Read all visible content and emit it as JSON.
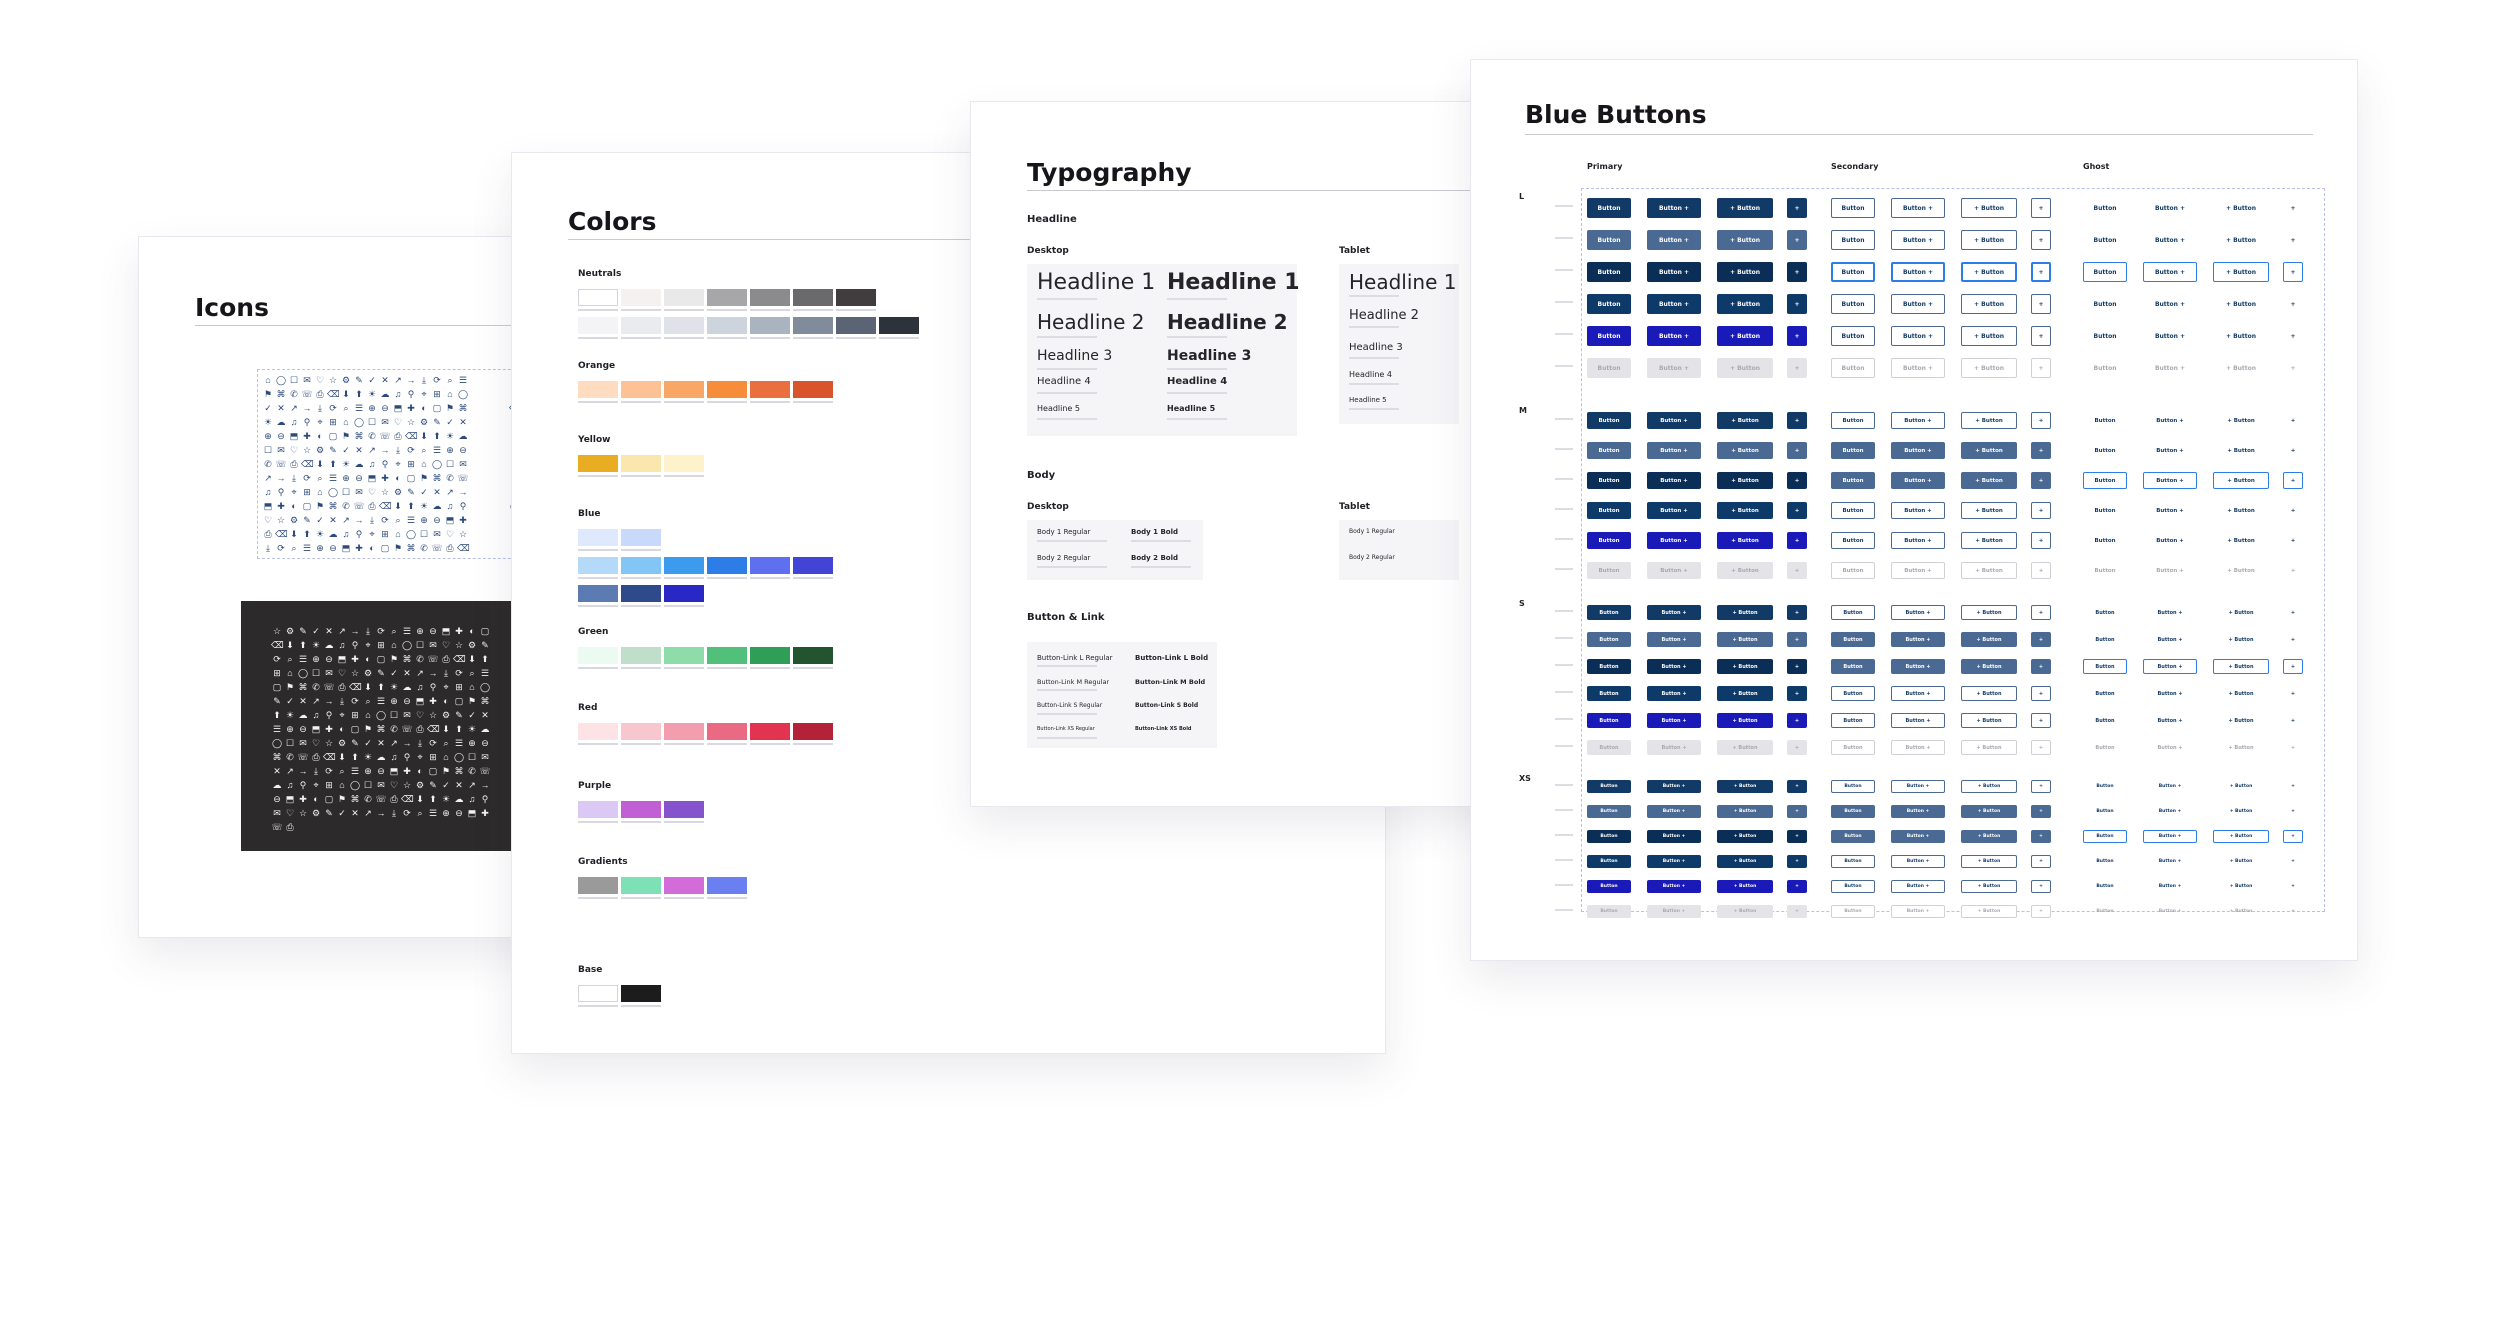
{
  "icons_page": {
    "title": "Icons",
    "light_glyphs": [
      "⌂",
      "◯",
      "☐",
      "✉",
      "♡",
      "☆",
      "⚙",
      "✎",
      "✓",
      "✕",
      "↗",
      "→",
      "⤓",
      "⟳",
      "⌕",
      "☰",
      "⊕",
      "⊖",
      "⬒",
      "✚",
      "◐",
      "▢",
      "⚑",
      "⌘",
      "✆",
      "☏",
      "⎙",
      "⌫",
      "⬇",
      "⬆",
      "☀",
      "☁",
      "♫",
      "⚲",
      "⌖",
      "⊞"
    ],
    "dark_glyphs": [
      "⌂",
      "◯",
      "☐",
      "✉",
      "♡",
      "☆",
      "⚙",
      "✎",
      "✓",
      "✕",
      "↗",
      "→",
      "⤓",
      "⟳",
      "⌕",
      "☰",
      "⊕",
      "⊖",
      "⬒",
      "✚",
      "◐",
      "▢",
      "⚑",
      "⌘",
      "✆",
      "☏",
      "⎙",
      "⌫",
      "⬇",
      "⬆",
      "☀",
      "☁",
      "♫",
      "⚲",
      "⌖",
      "⊞"
    ],
    "colors": {
      "light_glyph": "#2d4a7a",
      "dark_bg": "#2d2a2b",
      "dark_glyph": "#f2f2f2"
    }
  },
  "colors_page": {
    "title": "Colors",
    "groups": [
      {
        "name": "Neutrals",
        "rows": [
          [
            "#ffffff",
            "#f4f1ee",
            "#e9e9ea",
            "#a7a7a9",
            "#8b8b8d",
            "#6a6a6c",
            "#413c3e"
          ],
          [
            "#f4f4f6",
            "#e9ebef",
            "#dfe2e8",
            "#ced4dd",
            "#aab3c0",
            "#808b9b",
            "#5a6474",
            "#2e323a"
          ]
        ]
      },
      {
        "name": "Orange",
        "rows": [
          [
            "#ffdcc0",
            "#fcc295",
            "#f8a766",
            "#f68d3a",
            "#ea6f3f",
            "#d9532b"
          ]
        ]
      },
      {
        "name": "Yellow",
        "rows": [
          [
            "#e8ad22",
            "#fbe6ae",
            "#fdf2cc"
          ]
        ]
      },
      {
        "name": "Blue",
        "rows": [
          [
            "#dfe9fd",
            "#c9d9fc"
          ],
          [
            "#b5daf9",
            "#82c6f5",
            "#3c9bec",
            "#2d7de8",
            "#5e6ff0",
            "#4244d6"
          ],
          [
            "#5d7bb3",
            "#2e4a8a",
            "#2a28c4"
          ]
        ]
      },
      {
        "name": "Green",
        "rows": [
          [
            "#ecfbf2",
            "#bfdfcb",
            "#8ddca9",
            "#52c07b",
            "#2f9e56",
            "#24532f"
          ]
        ]
      },
      {
        "name": "Red",
        "rows": [
          [
            "#fde3e6",
            "#f7c6cf",
            "#f29eae",
            "#ea6a83",
            "#e23351",
            "#b4223a"
          ]
        ]
      },
      {
        "name": "Purple",
        "rows": [
          [
            "#dbc8f5",
            "#c160d4",
            "#8554cc"
          ]
        ]
      },
      {
        "name": "Gradients",
        "rows": [
          [
            "#9a9a9a",
            "#7ee0b6",
            "#d36bd8",
            "#6a7ff0"
          ]
        ]
      },
      {
        "name": "Base",
        "rows": [
          [
            "#ffffff",
            "#1c1c1c"
          ]
        ]
      }
    ]
  },
  "typography_page": {
    "title": "Typography",
    "headline_label": "Headline",
    "desktop_label": "Desktop",
    "tablet_label": "Tablet",
    "headlines": [
      "Headline 1",
      "Headline 2",
      "Headline 3",
      "Headline 4",
      "Headline 5"
    ],
    "body_label": "Body",
    "body_desktop_label": "Desktop",
    "body_tablet_label": "Tablet",
    "body_regular": [
      "Body 1 Regular",
      "Body 2 Regular"
    ],
    "body_bold": [
      "Body 1 Bold",
      "Body 2 Bold"
    ],
    "button_link_label": "Button & Link",
    "button_link_regular": [
      "Button-Link L Regular",
      "Button-Link M Regular",
      "Button-Link S Regular",
      "Button-Link XS Regular"
    ],
    "button_link_bold": [
      "Button-Link L Bold",
      "Button-Link M Bold",
      "Button-Link S Bold",
      "Button-Link XS Bold"
    ]
  },
  "buttons_page": {
    "title": "Blue Buttons",
    "groups": [
      "Primary",
      "Secondary",
      "Ghost"
    ],
    "sizes": [
      "L",
      "M",
      "S",
      "XS"
    ],
    "button_label": "Button",
    "plus_glyph": "+",
    "colors": {
      "default": "#123a66",
      "hover": "#4a6a94",
      "pressed": "#0b2e57",
      "focus": "#0e3a6a",
      "active": "#1a1ab8",
      "disabled_bg": "#e4e4e8",
      "disabled_text": "#a8a8b0",
      "secondary_border": "#4a6a94",
      "focus_ring": "#2d7de8",
      "ghost_text": "#123a66"
    }
  }
}
